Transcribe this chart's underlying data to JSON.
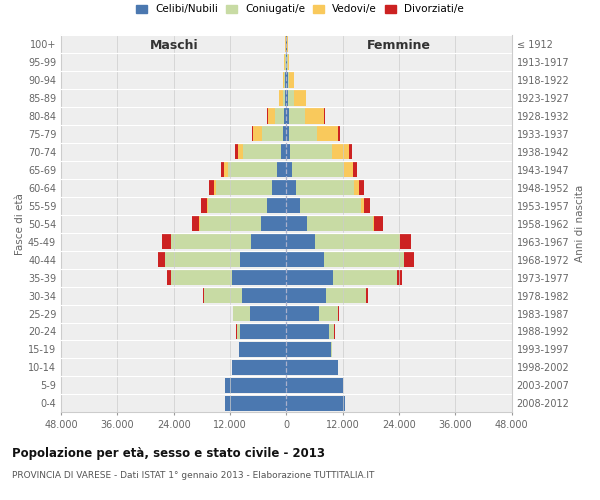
{
  "age_groups": [
    "0-4",
    "5-9",
    "10-14",
    "15-19",
    "20-24",
    "25-29",
    "30-34",
    "35-39",
    "40-44",
    "45-49",
    "50-54",
    "55-59",
    "60-64",
    "65-69",
    "70-74",
    "75-79",
    "80-84",
    "85-89",
    "90-94",
    "95-99",
    "100+"
  ],
  "birth_years": [
    "2008-2012",
    "2003-2007",
    "1998-2002",
    "1993-1997",
    "1988-1992",
    "1983-1987",
    "1978-1982",
    "1973-1977",
    "1968-1972",
    "1963-1967",
    "1958-1962",
    "1953-1957",
    "1948-1952",
    "1943-1947",
    "1938-1942",
    "1933-1937",
    "1928-1932",
    "1923-1927",
    "1918-1922",
    "1913-1917",
    "≤ 1912"
  ],
  "colors": {
    "celibi": "#4b78b0",
    "coniugati": "#c8dba4",
    "vedovi": "#f9c95c",
    "divorziati": "#cc2222"
  },
  "male": {
    "celibi": [
      13000,
      13000,
      11500,
      10000,
      9800,
      7800,
      9500,
      11500,
      9800,
      7500,
      5500,
      4200,
      3000,
      2000,
      1200,
      700,
      500,
      300,
      200,
      150,
      100
    ],
    "coniugati": [
      50,
      50,
      50,
      100,
      800,
      3500,
      8000,
      13000,
      16000,
      17000,
      13000,
      12500,
      12000,
      10500,
      8000,
      4500,
      2000,
      500,
      200,
      100,
      50
    ],
    "vedovi": [
      5,
      5,
      5,
      5,
      5,
      10,
      20,
      20,
      50,
      50,
      100,
      200,
      400,
      700,
      1200,
      2000,
      1500,
      800,
      300,
      150,
      50
    ],
    "divorziati": [
      5,
      5,
      5,
      10,
      50,
      100,
      300,
      800,
      1500,
      2000,
      1500,
      1200,
      1000,
      800,
      500,
      200,
      100,
      50,
      20,
      10,
      5
    ]
  },
  "female": {
    "nubili": [
      12500,
      12000,
      11000,
      9500,
      9000,
      7000,
      8500,
      10000,
      8000,
      6000,
      4500,
      3000,
      2000,
      1200,
      800,
      600,
      500,
      400,
      250,
      150,
      100
    ],
    "coniugate": [
      50,
      50,
      50,
      200,
      1200,
      4000,
      8500,
      13500,
      17000,
      18000,
      14000,
      13000,
      12500,
      11000,
      9000,
      6000,
      3500,
      1200,
      300,
      100,
      50
    ],
    "vedove": [
      5,
      5,
      5,
      5,
      10,
      20,
      30,
      50,
      100,
      150,
      250,
      500,
      1000,
      2000,
      3500,
      4500,
      4000,
      2500,
      1000,
      300,
      100
    ],
    "divorziate": [
      5,
      5,
      5,
      20,
      80,
      150,
      400,
      1000,
      2000,
      2500,
      1800,
      1300,
      1100,
      900,
      600,
      300,
      150,
      80,
      30,
      10,
      5
    ]
  },
  "xlim": 48000,
  "xtick_vals": [
    -48000,
    -36000,
    -24000,
    -12000,
    0,
    12000,
    24000,
    36000,
    48000
  ],
  "xtick_labels": [
    "48.000",
    "36.000",
    "24.000",
    "12.000",
    "0",
    "12.000",
    "24.000",
    "36.000",
    "48.000"
  ],
  "title": "Popolazione per età, sesso e stato civile - 2013",
  "subtitle": "PROVINCIA DI VARESE - Dati ISTAT 1° gennaio 2013 - Elaborazione TUTTITALIA.IT",
  "ylabel_left": "Fasce di età",
  "ylabel_right": "Anni di nascita",
  "label_maschi": "Maschi",
  "label_femmine": "Femmine",
  "legend_labels": [
    "Celibi/Nubili",
    "Coniugati/e",
    "Vedovi/e",
    "Divorziati/e"
  ],
  "background_color": "#ffffff",
  "plot_bg": "#eeeeee"
}
